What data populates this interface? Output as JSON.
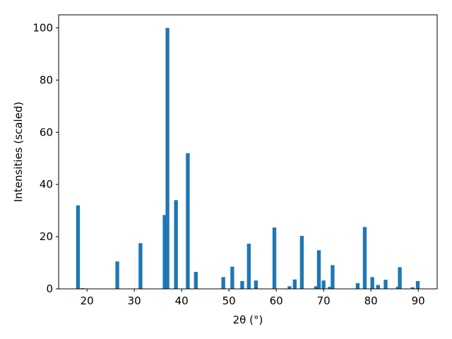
{
  "chart_data": {
    "type": "bar",
    "x_label": "2θ (°)",
    "y_label": "Intensities (scaled)",
    "x": [
      18.1,
      19.1,
      26.4,
      31.3,
      36.4,
      37.0,
      38.8,
      41.3,
      43.0,
      48.8,
      50.7,
      52.8,
      54.2,
      55.7,
      59.6,
      62.8,
      63.9,
      65.4,
      68.4,
      69.0,
      70.0,
      71.3,
      71.9,
      77.2,
      78.7,
      80.3,
      81.5,
      83.1,
      85.7,
      86.1,
      88.8,
      89.9
    ],
    "values": [
      32,
      0.3,
      10.5,
      17.5,
      28.3,
      100,
      34,
      52,
      6.5,
      4.5,
      8.5,
      3,
      17.3,
      3.2,
      23.5,
      1,
      3.6,
      20.3,
      1,
      14.8,
      3.2,
      0.8,
      9.1,
      2.2,
      23.7,
      4.5,
      1.5,
      3.5,
      0.8,
      8.3,
      0.6,
      3
    ],
    "bar_width": 0.8,
    "color": "#1f77b4",
    "xlim": [
      14,
      94
    ],
    "xticks": [
      20,
      30,
      40,
      50,
      60,
      70,
      80,
      90
    ],
    "ylim": [
      0,
      105
    ],
    "yticks": [
      0,
      20,
      40,
      60,
      80,
      100
    ],
    "grid": false
  }
}
